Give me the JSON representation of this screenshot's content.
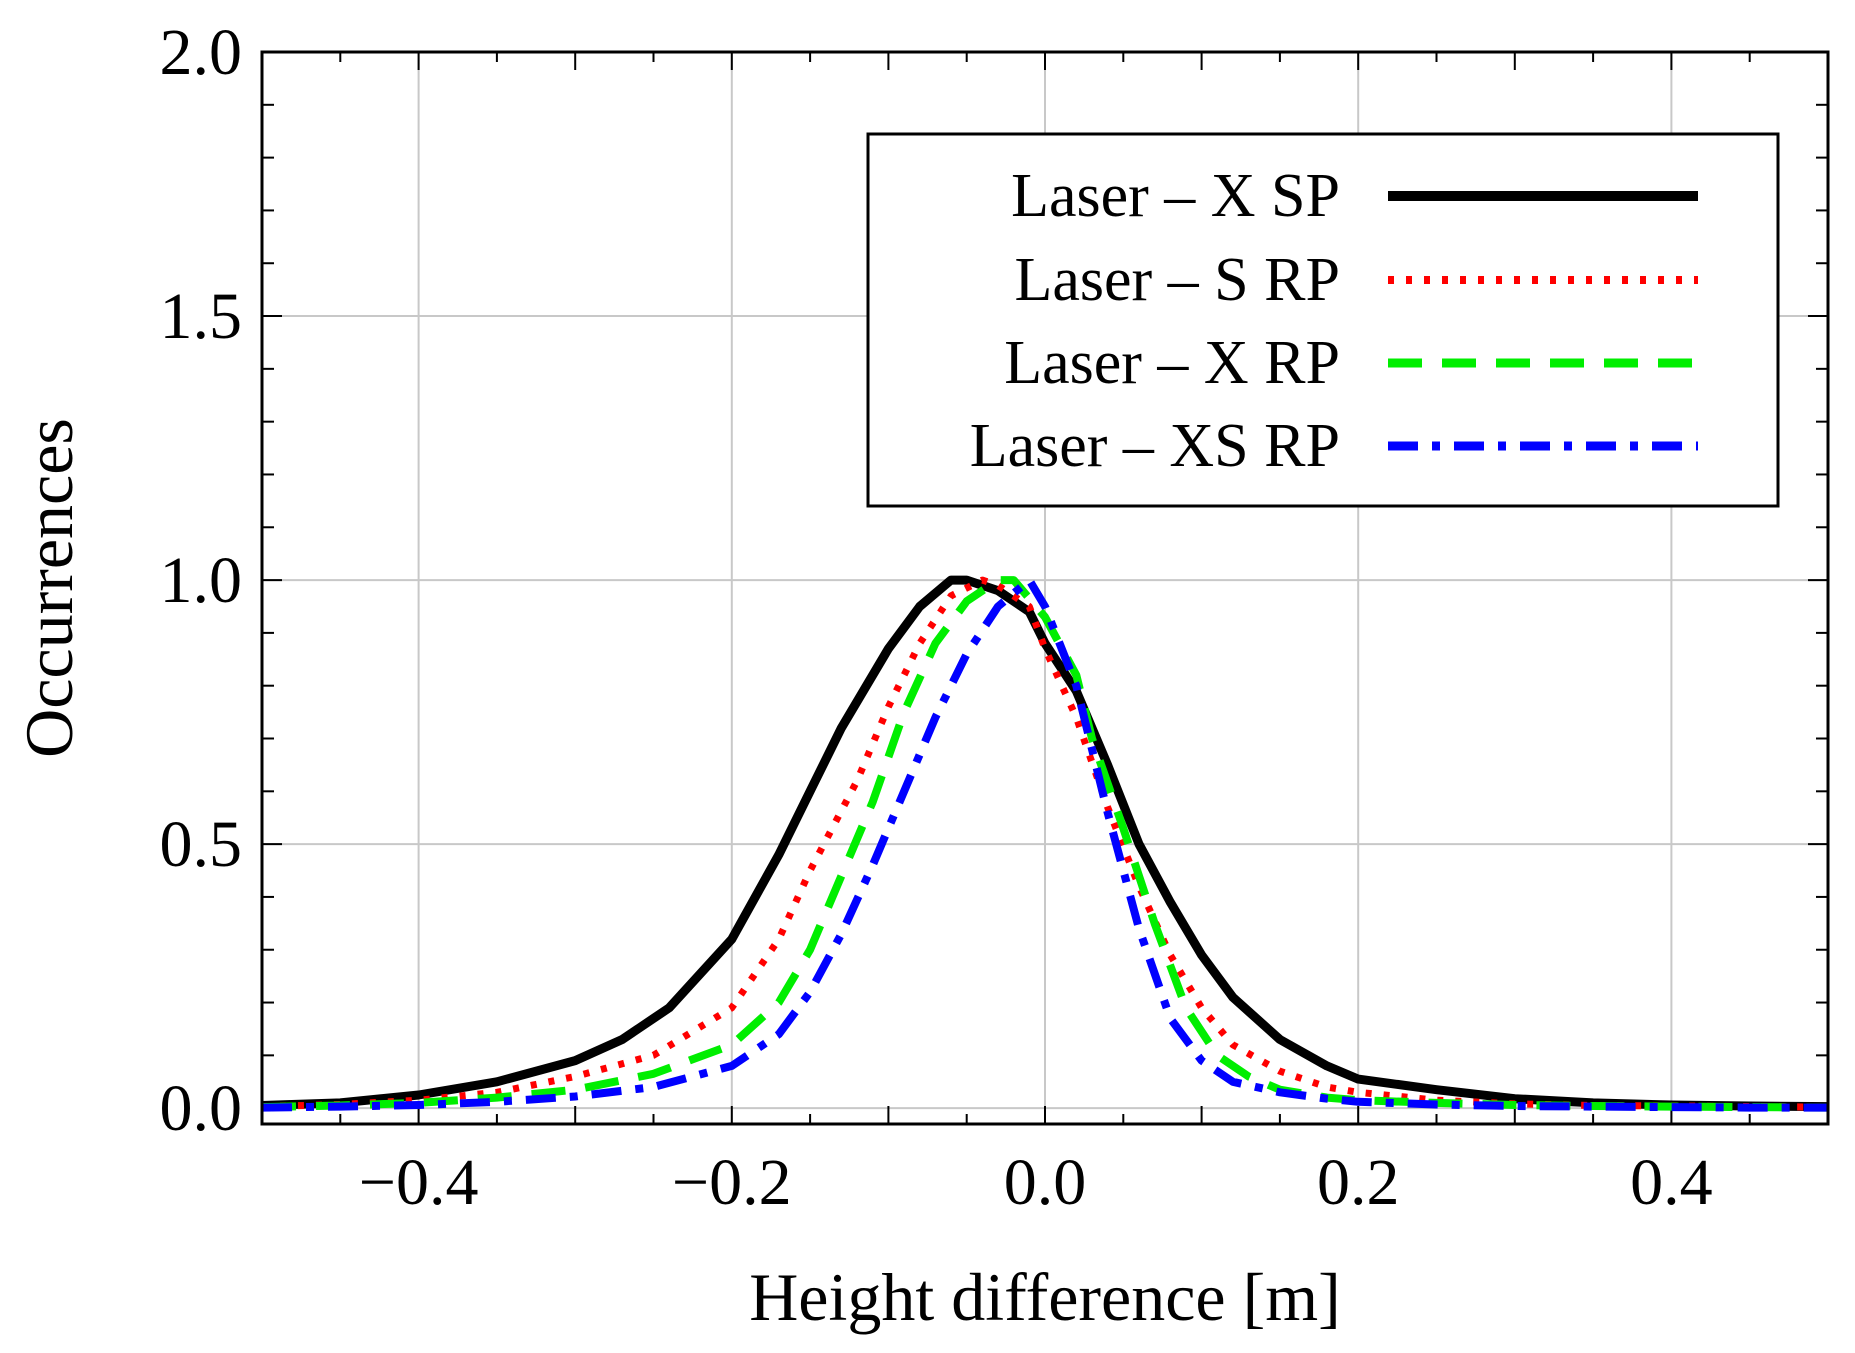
{
  "chart_data": {
    "type": "line",
    "title": "",
    "xlabel": "Height difference [m]",
    "ylabel": "Occurrences",
    "xlim": [
      -0.5,
      0.5
    ],
    "ylim": [
      -0.03,
      2.0
    ],
    "xticks": [
      {
        "value": -0.4,
        "label": "−0.4"
      },
      {
        "value": -0.2,
        "label": "−0.2"
      },
      {
        "value": 0.0,
        "label": "0.0"
      },
      {
        "value": 0.2,
        "label": "0.2"
      },
      {
        "value": 0.4,
        "label": "0.4"
      }
    ],
    "yticks": [
      {
        "value": 0.0,
        "label": "0.0"
      },
      {
        "value": 0.5,
        "label": "0.5"
      },
      {
        "value": 1.0,
        "label": "1.0"
      },
      {
        "value": 1.5,
        "label": "1.5"
      },
      {
        "value": 2.0,
        "label": "2.0"
      }
    ],
    "grid": true,
    "legend_position": "top-right",
    "series": [
      {
        "name": "Laser – X SP",
        "color": "#000000",
        "style": "solid",
        "x": [
          -0.5,
          -0.45,
          -0.4,
          -0.35,
          -0.3,
          -0.27,
          -0.24,
          -0.2,
          -0.17,
          -0.15,
          -0.13,
          -0.1,
          -0.08,
          -0.06,
          -0.05,
          -0.03,
          -0.01,
          0.0,
          0.02,
          0.04,
          0.06,
          0.08,
          0.1,
          0.12,
          0.15,
          0.18,
          0.2,
          0.25,
          0.3,
          0.35,
          0.4,
          0.45,
          0.5
        ],
        "y": [
          0.005,
          0.01,
          0.025,
          0.05,
          0.09,
          0.13,
          0.19,
          0.32,
          0.48,
          0.6,
          0.72,
          0.87,
          0.95,
          1.0,
          1.0,
          0.98,
          0.94,
          0.88,
          0.79,
          0.65,
          0.5,
          0.39,
          0.29,
          0.21,
          0.13,
          0.08,
          0.055,
          0.035,
          0.018,
          0.01,
          0.006,
          0.004,
          0.003
        ]
      },
      {
        "name": "Laser – S RP",
        "color": "#ff0000",
        "style": "dotted",
        "x": [
          -0.5,
          -0.45,
          -0.4,
          -0.35,
          -0.3,
          -0.25,
          -0.2,
          -0.17,
          -0.15,
          -0.12,
          -0.1,
          -0.08,
          -0.06,
          -0.04,
          -0.03,
          -0.01,
          0.0,
          0.02,
          0.04,
          0.06,
          0.08,
          0.1,
          0.12,
          0.15,
          0.18,
          0.2,
          0.25,
          0.3,
          0.35,
          0.4,
          0.45,
          0.5
        ],
        "y": [
          0.003,
          0.007,
          0.015,
          0.03,
          0.06,
          0.1,
          0.19,
          0.32,
          0.45,
          0.62,
          0.76,
          0.88,
          0.97,
          1.0,
          0.99,
          0.95,
          0.87,
          0.74,
          0.57,
          0.42,
          0.29,
          0.19,
          0.12,
          0.07,
          0.04,
          0.03,
          0.015,
          0.008,
          0.005,
          0.004,
          0.003,
          0.002
        ]
      },
      {
        "name": "Laser – X RP",
        "color": "#00ee00",
        "style": "dashed",
        "x": [
          -0.5,
          -0.45,
          -0.4,
          -0.35,
          -0.3,
          -0.25,
          -0.2,
          -0.17,
          -0.15,
          -0.13,
          -0.11,
          -0.09,
          -0.07,
          -0.05,
          -0.03,
          -0.02,
          0.0,
          0.02,
          0.03,
          0.05,
          0.07,
          0.09,
          0.11,
          0.13,
          0.15,
          0.18,
          0.2,
          0.25,
          0.3,
          0.35,
          0.4,
          0.45,
          0.5
        ],
        "y": [
          0.002,
          0.005,
          0.01,
          0.02,
          0.035,
          0.065,
          0.12,
          0.2,
          0.3,
          0.44,
          0.58,
          0.75,
          0.88,
          0.96,
          1.0,
          1.0,
          0.93,
          0.82,
          0.7,
          0.53,
          0.35,
          0.19,
          0.1,
          0.06,
          0.035,
          0.02,
          0.015,
          0.01,
          0.006,
          0.004,
          0.003,
          0.002,
          0.001
        ]
      },
      {
        "name": "Laser – XS RP",
        "color": "#0000ff",
        "style": "dashdot",
        "x": [
          -0.5,
          -0.45,
          -0.4,
          -0.35,
          -0.3,
          -0.25,
          -0.2,
          -0.17,
          -0.15,
          -0.13,
          -0.11,
          -0.09,
          -0.07,
          -0.05,
          -0.03,
          -0.01,
          0.0,
          0.02,
          0.04,
          0.06,
          0.08,
          0.1,
          0.12,
          0.15,
          0.18,
          0.2,
          0.25,
          0.3,
          0.35,
          0.4,
          0.45,
          0.5
        ],
        "y": [
          0.001,
          0.003,
          0.006,
          0.012,
          0.022,
          0.04,
          0.08,
          0.14,
          0.22,
          0.33,
          0.46,
          0.6,
          0.74,
          0.86,
          0.95,
          1.0,
          0.95,
          0.8,
          0.56,
          0.34,
          0.17,
          0.09,
          0.05,
          0.03,
          0.018,
          0.012,
          0.007,
          0.004,
          0.003,
          0.002,
          0.001,
          0.001
        ]
      }
    ]
  }
}
